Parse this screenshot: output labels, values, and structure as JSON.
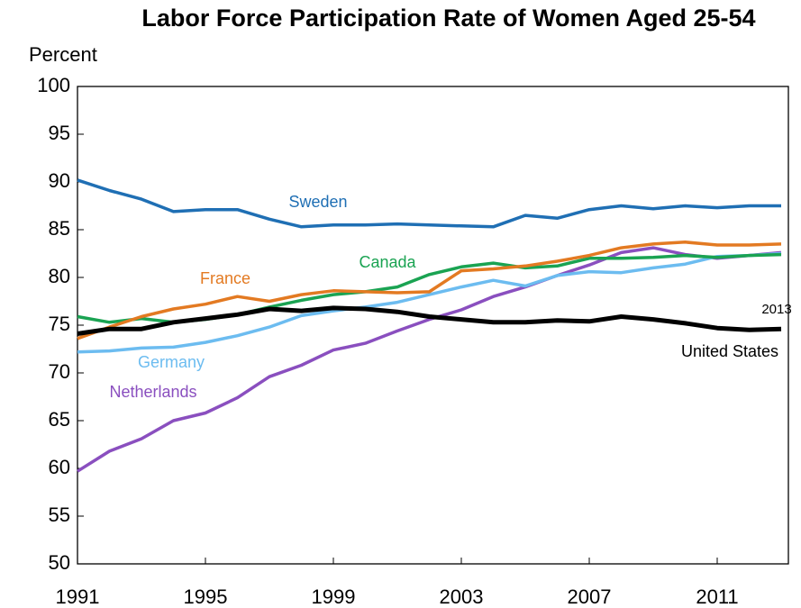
{
  "chart_data": {
    "type": "line",
    "title": "Labor Force Participation Rate of Women Aged 25-54",
    "y_label": "Percent",
    "annotation": "2013",
    "x": [
      1991,
      1992,
      1993,
      1994,
      1995,
      1996,
      1997,
      1998,
      1999,
      2000,
      2001,
      2002,
      2003,
      2004,
      2005,
      2006,
      2007,
      2008,
      2009,
      2010,
      2011,
      2012,
      2013
    ],
    "xlim": [
      1991,
      2013
    ],
    "xticks": [
      1991,
      1995,
      1999,
      2003,
      2007,
      2011
    ],
    "ylim": [
      50,
      100
    ],
    "yticks": [
      50,
      55,
      60,
      65,
      70,
      75,
      80,
      85,
      90,
      95,
      100
    ],
    "series": [
      {
        "name": "Netherlands",
        "color": "#8a4fbf",
        "values": [
          59.7,
          61.8,
          63.1,
          65.0,
          65.8,
          67.4,
          69.6,
          70.8,
          72.4,
          73.1,
          74.4,
          75.6,
          76.6,
          78.0,
          79.0,
          80.2,
          81.3,
          82.6,
          83.1,
          82.4,
          82.0,
          82.3,
          82.6
        ]
      },
      {
        "name": "Germany",
        "color": "#6cbcf0",
        "values": [
          72.2,
          72.3,
          72.6,
          72.7,
          73.2,
          73.9,
          74.8,
          76.0,
          76.5,
          76.9,
          77.4,
          78.2,
          79.0,
          79.7,
          79.1,
          80.2,
          80.6,
          80.5,
          81.0,
          81.4,
          82.2,
          82.3,
          82.5
        ]
      },
      {
        "name": "Canada",
        "color": "#1aa352",
        "values": [
          75.9,
          75.3,
          75.7,
          75.3,
          75.6,
          76.1,
          76.9,
          77.6,
          78.2,
          78.5,
          79.0,
          80.3,
          81.1,
          81.5,
          81.0,
          81.2,
          82.0,
          82.0,
          82.1,
          82.3,
          82.1,
          82.3,
          82.4
        ]
      },
      {
        "name": "France",
        "color": "#e37a22",
        "values": [
          73.6,
          74.8,
          75.9,
          76.7,
          77.2,
          78.0,
          77.5,
          78.2,
          78.6,
          78.5,
          78.4,
          78.5,
          80.7,
          80.9,
          81.2,
          81.7,
          82.3,
          83.1,
          83.5,
          83.7,
          83.4,
          83.4,
          83.5
        ]
      },
      {
        "name": "Sweden",
        "color": "#1f6fb4",
        "values": [
          90.2,
          89.1,
          88.2,
          86.9,
          87.1,
          87.1,
          86.1,
          85.3,
          85.5,
          85.5,
          85.6,
          85.5,
          85.4,
          85.3,
          86.5,
          86.2,
          87.1,
          87.5,
          87.2,
          87.5,
          87.3,
          87.5,
          87.5
        ]
      },
      {
        "name": "United States",
        "color": "#000000",
        "values": [
          74.1,
          74.6,
          74.6,
          75.3,
          75.7,
          76.1,
          76.7,
          76.5,
          76.8,
          76.7,
          76.4,
          75.9,
          75.6,
          75.3,
          75.3,
          75.5,
          75.4,
          75.9,
          75.6,
          75.2,
          74.7,
          74.5,
          74.6
        ]
      }
    ]
  }
}
